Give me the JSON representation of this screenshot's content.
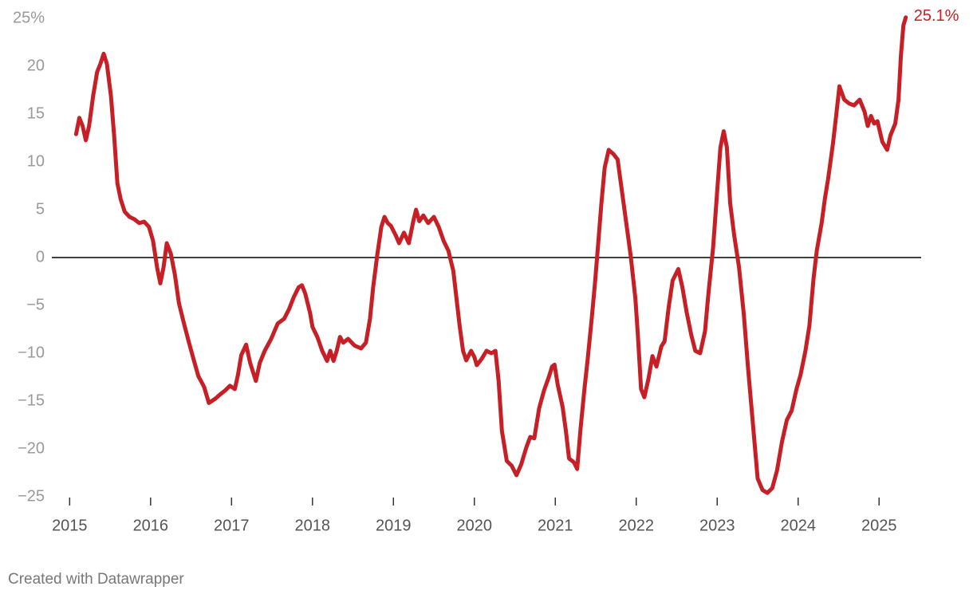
{
  "chart_data": {
    "type": "line",
    "footer": "Created with Datawrapper",
    "x": [
      2015.08,
      2015.12,
      2015.16,
      2015.2,
      2015.24,
      2015.29,
      2015.34,
      2015.38,
      2015.42,
      2015.46,
      2015.51,
      2015.55,
      2015.59,
      2015.63,
      2015.68,
      2015.74,
      2015.8,
      2015.86,
      2015.92,
      2015.98,
      2016.03,
      2016.08,
      2016.12,
      2016.16,
      2016.2,
      2016.25,
      2016.3,
      2016.35,
      2016.41,
      2016.47,
      2016.53,
      2016.59,
      2016.66,
      2016.72,
      2016.8,
      2016.86,
      2016.92,
      2016.98,
      2017.04,
      2017.08,
      2017.12,
      2017.18,
      2017.23,
      2017.3,
      2017.35,
      2017.41,
      2017.49,
      2017.57,
      2017.65,
      2017.71,
      2017.77,
      2017.83,
      2017.87,
      2017.91,
      2017.97,
      2018,
      2018.06,
      2018.12,
      2018.18,
      2018.22,
      2018.26,
      2018.3,
      2018.34,
      2018.38,
      2018.44,
      2018.52,
      2018.6,
      2018.66,
      2018.71,
      2018.75,
      2018.8,
      2018.85,
      2018.89,
      2018.93,
      2018.97,
      2019.03,
      2019.07,
      2019.13,
      2019.19,
      2019.25,
      2019.28,
      2019.32,
      2019.37,
      2019.43,
      2019.5,
      2019.56,
      2019.62,
      2019.68,
      2019.74,
      2019.78,
      2019.82,
      2019.86,
      2019.9,
      2019.96,
      2020,
      2020.03,
      2020.09,
      2020.15,
      2020.21,
      2020.26,
      2020.3,
      2020.34,
      2020.4,
      2020.46,
      2020.52,
      2020.58,
      2020.64,
      2020.69,
      2020.74,
      2020.8,
      2020.86,
      2020.92,
      2020.96,
      2020.99,
      2021.03,
      2021.09,
      2021.13,
      2021.17,
      2021.23,
      2021.27,
      2021.31,
      2021.36,
      2021.4,
      2021.45,
      2021.49,
      2021.53,
      2021.57,
      2021.61,
      2021.66,
      2021.72,
      2021.77,
      2021.81,
      2021.87,
      2021.93,
      2021.99,
      2022.02,
      2022.06,
      2022.1,
      2022.15,
      2022.2,
      2022.25,
      2022.31,
      2022.35,
      2022.4,
      2022.45,
      2022.52,
      2022.57,
      2022.62,
      2022.68,
      2022.73,
      2022.79,
      2022.85,
      2022.89,
      2022.95,
      2023,
      2023.04,
      2023.08,
      2023.12,
      2023.16,
      2023.21,
      2023.27,
      2023.33,
      2023.38,
      2023.44,
      2023.5,
      2023.56,
      2023.62,
      2023.68,
      2023.74,
      2023.8,
      2023.86,
      2023.92,
      2023.98,
      2024.03,
      2024.09,
      2024.14,
      2024.19,
      2024.23,
      2024.29,
      2024.33,
      2024.37,
      2024.43,
      2024.47,
      2024.51,
      2024.57,
      2024.63,
      2024.69,
      2024.76,
      2024.82,
      2024.86,
      2024.9,
      2024.94,
      2024.98,
      2025.04,
      2025.1,
      2025.14,
      2025.2,
      2025.24,
      2025.27,
      2025.3,
      2025.33
    ],
    "series": [
      {
        "color": "#c62026",
        "last_value_label": "25.1%",
        "values": [
          12.9,
          14.6,
          13.75,
          12.25,
          13.75,
          16.9,
          19.4,
          20.25,
          21.3,
          20.25,
          16.9,
          12.75,
          7.75,
          6.1,
          4.8,
          4.25,
          4,
          3.6,
          3.75,
          3.2,
          1.75,
          -1,
          -2.7,
          -1,
          1.5,
          0.4,
          -1.8,
          -4.75,
          -6.8,
          -8.75,
          -10.6,
          -12.4,
          -13.5,
          -15.2,
          -14.75,
          -14.3,
          -13.9,
          -13.4,
          -13.75,
          -12.25,
          -10.2,
          -9.1,
          -11,
          -12.9,
          -11,
          -9.75,
          -8.5,
          -6.9,
          -6.4,
          -5.4,
          -4.1,
          -3.1,
          -2.9,
          -3.75,
          -5.8,
          -7.25,
          -8.3,
          -9.75,
          -10.8,
          -9.75,
          -10.8,
          -9.75,
          -8.3,
          -8.9,
          -8.5,
          -9.2,
          -9.5,
          -8.9,
          -6.4,
          -3.1,
          0.25,
          3.2,
          4.25,
          3.6,
          3.3,
          2.3,
          1.5,
          2.6,
          1.5,
          4,
          5,
          3.8,
          4.4,
          3.6,
          4.25,
          3.2,
          1.75,
          0.7,
          -1.4,
          -4.3,
          -7.25,
          -9.75,
          -10.75,
          -9.75,
          -10.4,
          -11.25,
          -10.6,
          -9.75,
          -10,
          -9.75,
          -12.9,
          -18.1,
          -21.25,
          -21.75,
          -22.75,
          -21.6,
          -19.9,
          -18.75,
          -18.9,
          -15.75,
          -13.9,
          -12.5,
          -11.4,
          -11.2,
          -13.3,
          -15.6,
          -18.1,
          -21,
          -21.4,
          -22.1,
          -18.1,
          -13.75,
          -10.6,
          -6.4,
          -2.7,
          1.5,
          5.7,
          9.4,
          11.25,
          10.8,
          10.25,
          7.75,
          4,
          0.25,
          -4.3,
          -8.1,
          -13.75,
          -14.6,
          -12.7,
          -10.3,
          -11.4,
          -9.3,
          -8.75,
          -5.2,
          -2.4,
          -1.2,
          -3.1,
          -5.6,
          -8.1,
          -9.75,
          -10,
          -7.7,
          -3.9,
          1.1,
          6.9,
          11.5,
          13.2,
          11.5,
          5.7,
          2.3,
          -1,
          -6,
          -11.4,
          -17.25,
          -23.1,
          -24.3,
          -24.6,
          -24.1,
          -22.25,
          -19.3,
          -17,
          -16,
          -13.75,
          -12.25,
          -9.75,
          -7.1,
          -2.25,
          0.7,
          3.6,
          6.1,
          8.2,
          11.9,
          14.8,
          17.9,
          16.5,
          16.1,
          15.9,
          16.5,
          15.25,
          13.75,
          14.8,
          14,
          14.25,
          12.1,
          11.25,
          12.75,
          14,
          16.5,
          21.1,
          24.25,
          25.1
        ]
      }
    ],
    "xlim": [
      2014.78,
      2025.52
    ],
    "xticks": [
      2015,
      2016,
      2017,
      2018,
      2019,
      2020,
      2021,
      2022,
      2023,
      2024,
      2025
    ],
    "ylim": [
      -25,
      25
    ],
    "yticks": [
      {
        "value": 25,
        "label": "25%"
      },
      20,
      15,
      10,
      5,
      0,
      {
        "value": -5,
        "label": "−5"
      },
      {
        "value": -10,
        "label": "−10"
      },
      {
        "value": -15,
        "label": "−15"
      },
      {
        "value": -20,
        "label": "−20"
      },
      {
        "value": -25,
        "label": "−25"
      }
    ],
    "grid": false
  }
}
